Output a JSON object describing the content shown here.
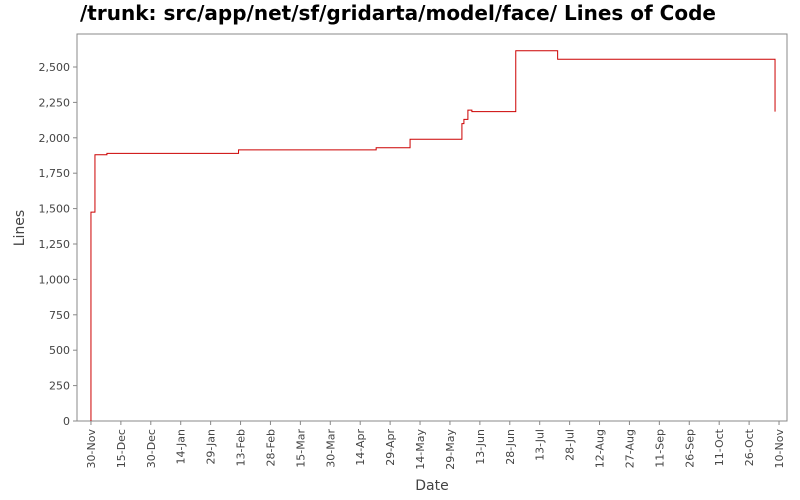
{
  "chart_data": {
    "type": "step-line",
    "title": "/trunk: src/app/net/sf/gridarta/model/face/ Lines of Code",
    "x_label": "Date",
    "y_label": "Lines",
    "x": [
      "30-Nov",
      "30-Nov",
      "02-Dec",
      "08-Dec",
      "12-Feb",
      "22-Apr",
      "09-May",
      "04-Jun",
      "05-Jun",
      "07-Jun",
      "09-Jun",
      "01-Jul",
      "22-Jul",
      "08-Nov"
    ],
    "series": [
      {
        "name": "Lines",
        "color": "#cc0000",
        "values": [
          0,
          1475,
          1880,
          1890,
          1915,
          1930,
          1990,
          2100,
          2130,
          2195,
          2185,
          2615,
          2555,
          2185
        ]
      }
    ],
    "xlim": [
      "23-Nov",
      "14-Nov"
    ],
    "xticks": [
      "30-Nov",
      "15-Dec",
      "30-Dec",
      "14-Jan",
      "29-Jan",
      "13-Feb",
      "28-Feb",
      "15-Mar",
      "30-Mar",
      "14-Apr",
      "29-Apr",
      "14-May",
      "29-May",
      "13-Jun",
      "28-Jun",
      "13-Jul",
      "28-Jul",
      "12-Aug",
      "27-Aug",
      "11-Sep",
      "26-Sep",
      "11-Oct",
      "26-Oct",
      "10-Nov"
    ],
    "ylim": [
      0,
      2733
    ],
    "yticks": [
      0,
      250,
      500,
      750,
      {
        "value": 1000,
        "label": "1,000"
      },
      {
        "value": 1250,
        "label": "1,250"
      },
      {
        "value": 1500,
        "label": "1,500"
      },
      {
        "value": 1750,
        "label": "1,750"
      },
      {
        "value": 2000,
        "label": "2,000"
      },
      {
        "value": 2250,
        "label": "2,250"
      },
      {
        "value": 2500,
        "label": "2,500"
      }
    ]
  }
}
